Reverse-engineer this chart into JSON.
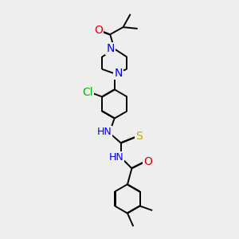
{
  "background_color": "#eeeeee",
  "atom_colors": {
    "C": "#000000",
    "N": "#0000ee",
    "O": "#ee0000",
    "S": "#bbaa00",
    "Cl": "#00bb00",
    "H": "#000000"
  },
  "bond_color": "#000000",
  "bond_width": 1.4,
  "figsize": [
    3.0,
    3.0
  ],
  "dpi": 100
}
